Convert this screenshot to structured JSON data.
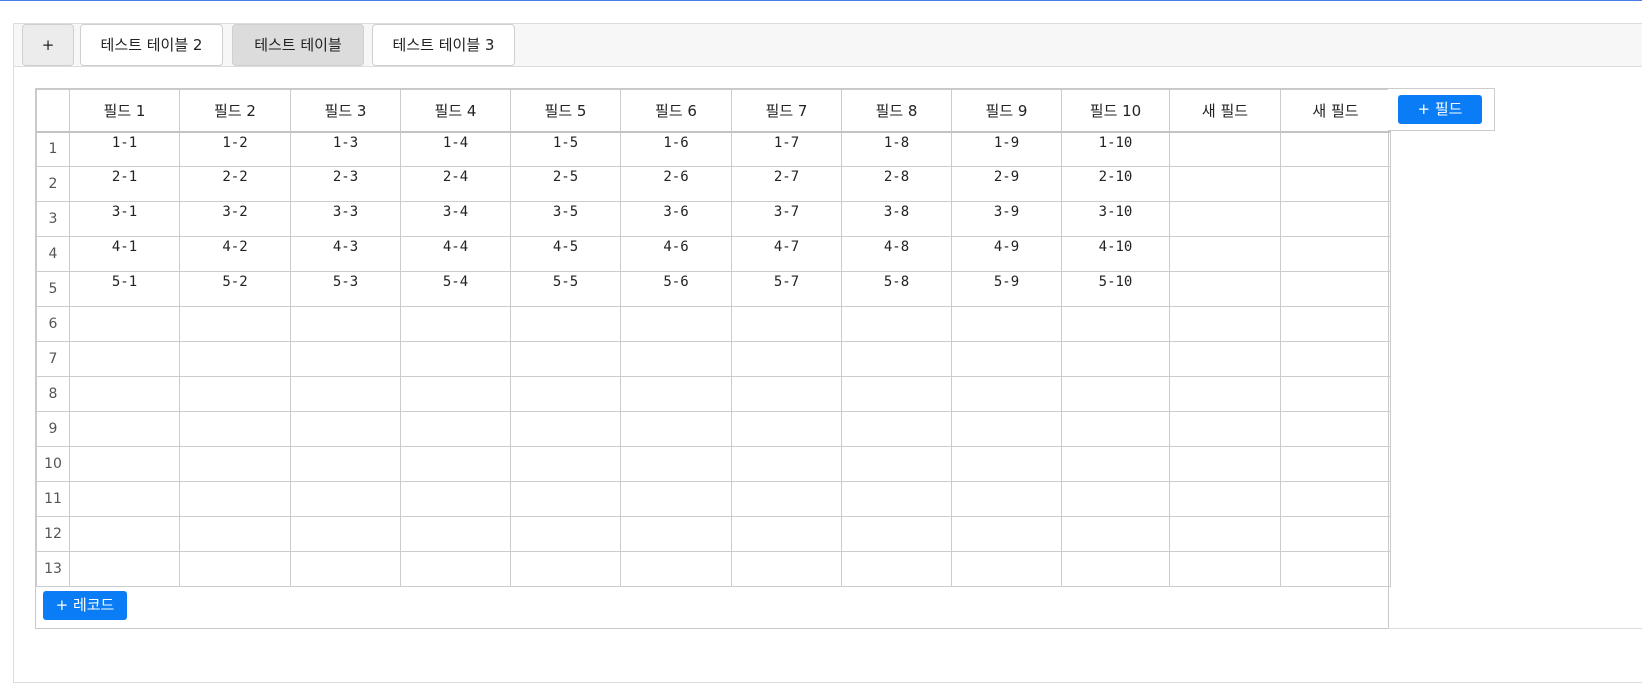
{
  "tabs": [
    {
      "label": "+",
      "type": "add"
    },
    {
      "label": "테스트 테이블 2",
      "active": false
    },
    {
      "label": "테스트 테이블",
      "active": true
    },
    {
      "label": "테스트 테이블 3",
      "active": false
    }
  ],
  "columns": [
    "필드 1",
    "필드 2",
    "필드 3",
    "필드 4",
    "필드 5",
    "필드 6",
    "필드 7",
    "필드 8",
    "필드 9",
    "필드 10",
    "새 필드",
    "새 필드"
  ],
  "add_field_label": "+ 필드",
  "add_record_label": "+ 레코드",
  "rows": [
    {
      "num": "1",
      "cells": [
        "1-1",
        "1-2",
        "1-3",
        "1-4",
        "1-5",
        "1-6",
        "1-7",
        "1-8",
        "1-9",
        "1-10",
        "",
        ""
      ]
    },
    {
      "num": "2",
      "cells": [
        "2-1",
        "2-2",
        "2-3",
        "2-4",
        "2-5",
        "2-6",
        "2-7",
        "2-8",
        "2-9",
        "2-10",
        "",
        ""
      ]
    },
    {
      "num": "3",
      "cells": [
        "3-1",
        "3-2",
        "3-3",
        "3-4",
        "3-5",
        "3-6",
        "3-7",
        "3-8",
        "3-9",
        "3-10",
        "",
        ""
      ]
    },
    {
      "num": "4",
      "cells": [
        "4-1",
        "4-2",
        "4-3",
        "4-4",
        "4-5",
        "4-6",
        "4-7",
        "4-8",
        "4-9",
        "4-10",
        "",
        ""
      ]
    },
    {
      "num": "5",
      "cells": [
        "5-1",
        "5-2",
        "5-3",
        "5-4",
        "5-5",
        "5-6",
        "5-7",
        "5-8",
        "5-9",
        "5-10",
        "",
        ""
      ]
    },
    {
      "num": "6",
      "cells": [
        "",
        "",
        "",
        "",
        "",
        "",
        "",
        "",
        "",
        "",
        "",
        ""
      ]
    },
    {
      "num": "7",
      "cells": [
        "",
        "",
        "",
        "",
        "",
        "",
        "",
        "",
        "",
        "",
        "",
        ""
      ]
    },
    {
      "num": "8",
      "cells": [
        "",
        "",
        "",
        "",
        "",
        "",
        "",
        "",
        "",
        "",
        "",
        ""
      ]
    },
    {
      "num": "9",
      "cells": [
        "",
        "",
        "",
        "",
        "",
        "",
        "",
        "",
        "",
        "",
        "",
        ""
      ]
    },
    {
      "num": "10",
      "cells": [
        "",
        "",
        "",
        "",
        "",
        "",
        "",
        "",
        "",
        "",
        "",
        ""
      ]
    },
    {
      "num": "11",
      "cells": [
        "",
        "",
        "",
        "",
        "",
        "",
        "",
        "",
        "",
        "",
        "",
        ""
      ]
    },
    {
      "num": "12",
      "cells": [
        "",
        "",
        "",
        "",
        "",
        "",
        "",
        "",
        "",
        "",
        "",
        ""
      ]
    },
    {
      "num": "13",
      "cells": [
        "",
        "",
        "",
        "",
        "",
        "",
        "",
        "",
        "",
        "",
        "",
        ""
      ]
    }
  ],
  "colors": {
    "accent": "#0a7cf5",
    "active_tab": "#dcdcdc",
    "top_line": "#4a7fe5"
  }
}
